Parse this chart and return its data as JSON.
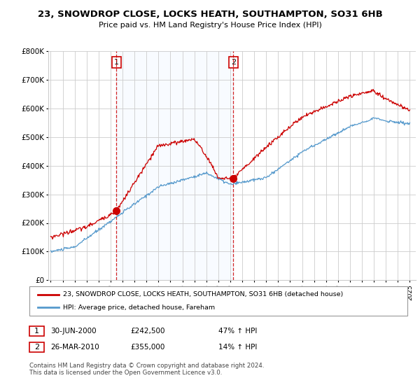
{
  "title": "23, SNOWDROP CLOSE, LOCKS HEATH, SOUTHAMPTON, SO31 6HB",
  "subtitle": "Price paid vs. HM Land Registry's House Price Index (HPI)",
  "legend_label_red": "23, SNOWDROP CLOSE, LOCKS HEATH, SOUTHAMPTON, SO31 6HB (detached house)",
  "legend_label_blue": "HPI: Average price, detached house, Fareham",
  "sale1_date": "30-JUN-2000",
  "sale1_price": "£242,500",
  "sale1_hpi": "47% ↑ HPI",
  "sale2_date": "26-MAR-2010",
  "sale2_price": "£355,000",
  "sale2_hpi": "14% ↑ HPI",
  "footer": "Contains HM Land Registry data © Crown copyright and database right 2024.\nThis data is licensed under the Open Government Licence v3.0.",
  "ylim": [
    0,
    800000
  ],
  "yticks": [
    0,
    100000,
    200000,
    300000,
    400000,
    500000,
    600000,
    700000,
    800000
  ],
  "sale1_x": 2000.5,
  "sale2_x": 2010.25,
  "red_color": "#cc0000",
  "blue_color": "#5599cc",
  "shade_color": "#ddeeff",
  "dashed_color": "#cc0000"
}
